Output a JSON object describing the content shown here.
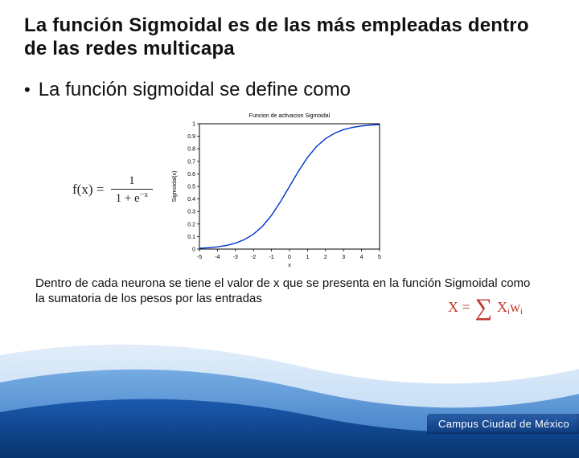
{
  "title": "La función Sigmoidal es de las más empleadas dentro de las redes multicapa",
  "bullet": "La función sigmoidal se define como",
  "formula_main": {
    "lhs": "f(x) =",
    "numerator": "1",
    "denominator_prefix": "1 + e",
    "denominator_exp": "−x"
  },
  "caption": "Dentro de cada neurona se tiene el valor de x que se presenta en la función Sigmoidal como la sumatoria de los pesos por las entradas",
  "formula_sum": {
    "lhs": "X =",
    "sigma": "∑",
    "sub": "i",
    "term_X": "X",
    "term_Xi": "i",
    "term_w": "w",
    "term_wi": "i"
  },
  "chart": {
    "type": "line",
    "title": "Funcion de activacion Sigmoidal",
    "title_fontsize": 7,
    "xlabel": "x",
    "ylabel": "Sigmoidal(x)",
    "label_fontsize": 7,
    "tick_fontsize": 7,
    "xlim": [
      -5,
      5
    ],
    "ylim": [
      0,
      1
    ],
    "xticks": [
      -5,
      -4,
      -3,
      -2,
      -1,
      0,
      1,
      2,
      3,
      4,
      5
    ],
    "yticks": [
      0,
      0.1,
      0.2,
      0.3,
      0.4,
      0.5,
      0.6,
      0.7,
      0.8,
      0.9,
      1
    ],
    "line_color": "#0033cc",
    "line_width": 1.4,
    "axis_color": "#000000",
    "background_color": "#ffffff",
    "points_x": [
      -5,
      -4.5,
      -4,
      -3.5,
      -3,
      -2.5,
      -2,
      -1.5,
      -1,
      -0.5,
      0,
      0.5,
      1,
      1.5,
      2,
      2.5,
      3,
      3.5,
      4,
      4.5,
      5
    ],
    "points_y": [
      0.0067,
      0.011,
      0.018,
      0.029,
      0.047,
      0.076,
      0.119,
      0.182,
      0.269,
      0.378,
      0.5,
      0.622,
      0.731,
      0.818,
      0.881,
      0.924,
      0.953,
      0.971,
      0.982,
      0.989,
      0.993
    ]
  },
  "swoosh": {
    "color_light": "#bcd8f5",
    "color_mid": "#4f8edc",
    "color_dark": "#0b3e8c"
  },
  "footer": "Campus Ciudad de México"
}
